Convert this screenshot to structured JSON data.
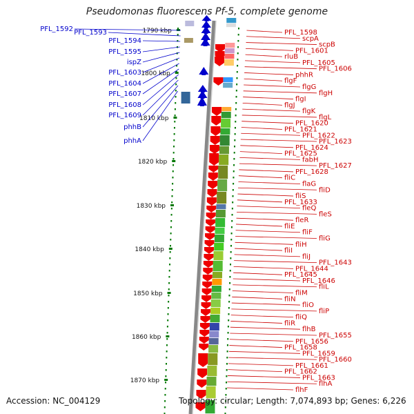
{
  "title": "Pseudomonas fluorescens Pf-5, complete genome",
  "footer": {
    "accession": "Accession: NC_004129",
    "topology": "Topology: circular; Length: 7,074,893 bp; Genes: 6,226"
  },
  "colors": {
    "left_label": "#0000cc",
    "right_label": "#cc0000",
    "scale_tick": "#007700",
    "forward_gene": "#0000cc",
    "reverse_gene": "#ee0000",
    "backbone": "#888888"
  },
  "ruler": {
    "unit": "kbp",
    "ticks": [
      "1790 kbp",
      "1800 kbp",
      "1810 kbp",
      "1820 kbp",
      "1830 kbp",
      "1840 kbp",
      "1850 kbp",
      "1860 kbp",
      "1870 kbp"
    ]
  },
  "left_labels": [
    "PFL_1592",
    "PFL_1593",
    "PFL_1594",
    "PFL_1595",
    "ispZ",
    "PFL_1603",
    "PFL_1604",
    "PFL_1607",
    "PFL_1608",
    "PFL_1609",
    "phhB",
    "phhA"
  ],
  "right_labels": [
    "PFL_1598",
    "scpA",
    "scpB",
    "PFL_1601",
    "rluB",
    "PFL_1605",
    "PFL_1606",
    "phhR",
    "flgF",
    "flgG",
    "flgH",
    "flgI",
    "flgJ",
    "flgK",
    "flgL",
    "PFL_1620",
    "PFL_1621",
    "PFL_1622",
    "PFL_1623",
    "PFL_1624",
    "PFL_1625",
    "fabH",
    "PFL_1627",
    "PFL_1628",
    "fliC",
    "flaG",
    "fliD",
    "fliS",
    "PFL_1633",
    "fleQ",
    "fleS",
    "fleR",
    "fliE",
    "fliF",
    "fliG",
    "fliH",
    "fliI",
    "fliJ",
    "PFL_1643",
    "PFL_1644",
    "PFL_1645",
    "PFL_1646",
    "fliL",
    "fliM",
    "fliN",
    "fliO",
    "fliP",
    "fliQ",
    "fliR",
    "flhB",
    "PFL_1655",
    "PFL_1656",
    "PFL_1658",
    "PFL_1659",
    "PFL_1660",
    "PFL_1661",
    "PFL_1662",
    "PFL_1663",
    "flhA",
    "flhF"
  ]
}
